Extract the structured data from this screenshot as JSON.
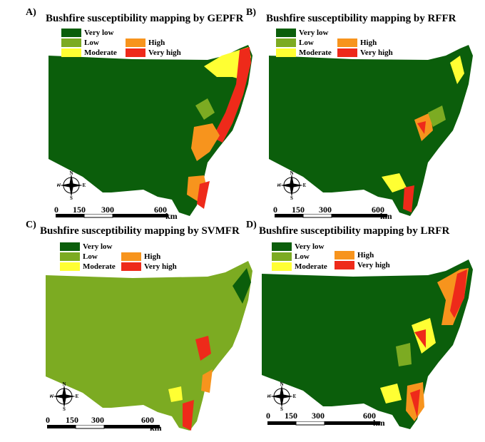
{
  "panels": [
    {
      "letter": "A)",
      "title": "Bushfire susceptibility mapping by GEPFR"
    },
    {
      "letter": "B)",
      "title": "Bushfire susceptibility mapping by RFFR"
    },
    {
      "letter": "C)",
      "title": "Bushfire susceptibility mapping by SVMFR"
    },
    {
      "letter": "D)",
      "title": "Bushfire susceptibility mapping by LRFR"
    }
  ],
  "legend": [
    {
      "label": "Very low",
      "color": "#0b5e0b"
    },
    {
      "label": "Low",
      "color": "#7cab22"
    },
    {
      "label": "Moderate",
      "color": "#ffff33"
    },
    {
      "label": "High",
      "color": "#f7941d"
    },
    {
      "label": "Very high",
      "color": "#ee2a1a"
    }
  ],
  "scale_bar": {
    "ticks": [
      "0",
      "150",
      "300",
      "600"
    ],
    "unit": "km"
  },
  "compass": {
    "n": "N",
    "s": "S",
    "e": "E",
    "w": "W"
  }
}
